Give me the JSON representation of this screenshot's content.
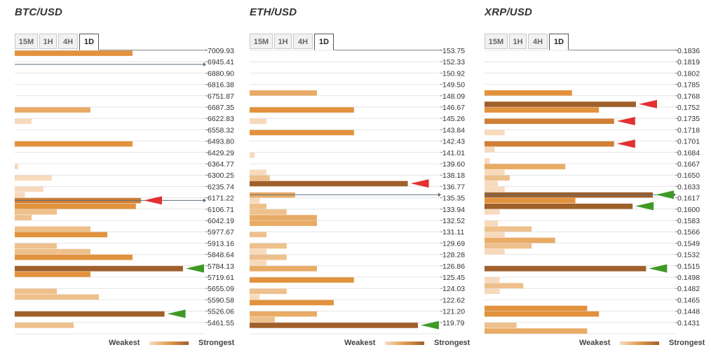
{
  "timeframes": [
    "15M",
    "1H",
    "4H",
    "1D"
  ],
  "active_timeframe": "1D",
  "legend": {
    "weakest": "Weakest",
    "strongest": "Strongest"
  },
  "colors": {
    "level1": "#f7d9bc",
    "level2": "#eec08c",
    "level3": "#e9ab65",
    "level4": "#e2923d",
    "level5": "#d07f35",
    "level6": "#a0602a",
    "red_marker": "#e33030",
    "green_marker": "#3f9a25",
    "grid": "#e4e4e4"
  },
  "chart_data": [
    {
      "type": "bar",
      "title": "BTC/USD",
      "orientation": "horizontal",
      "strength_scale_max": 10,
      "price_ticks": [
        "7009.93",
        "6945.41",
        "6880.90",
        "6816.38",
        "6751.87",
        "6687.35",
        "6622.83",
        "6558.32",
        "6493.80",
        "6429.29",
        "6364.77",
        "6300.25",
        "6235.74",
        "6171.22",
        "6106.71",
        "6042.19",
        "5977.67",
        "5913.16",
        "5848.64",
        "5784.13",
        "5719.61",
        "5655.09",
        "5590.58",
        "5526.06",
        "5461.55"
      ],
      "current_price_tick": "6171.22",
      "bars": [
        {
          "band": 0,
          "strength": 7,
          "level": 4
        },
        {
          "band": 5,
          "strength": 4.5,
          "level": 3
        },
        {
          "band": 6,
          "strength": 1,
          "level": 1
        },
        {
          "band": 8,
          "strength": 7,
          "level": 4
        },
        {
          "band": 10,
          "strength": 0.2,
          "level": 1
        },
        {
          "band": 11,
          "strength": 2.2,
          "level": 1
        },
        {
          "band": 12,
          "strength": 1.7,
          "level": 1
        },
        {
          "band": 12.5,
          "strength": 0.6,
          "level": 1
        },
        {
          "band": 13,
          "strength": 7.5,
          "level": 5
        },
        {
          "band": 13.5,
          "strength": 7.2,
          "level": 4
        },
        {
          "band": 14,
          "strength": 2.5,
          "level": 2
        },
        {
          "band": 14.5,
          "strength": 1,
          "level": 2
        },
        {
          "band": 15.5,
          "strength": 4.5,
          "level": 2
        },
        {
          "band": 16,
          "strength": 5.5,
          "level": 4
        },
        {
          "band": 17,
          "strength": 2.5,
          "level": 2
        },
        {
          "band": 17.5,
          "strength": 4.5,
          "level": 2
        },
        {
          "band": 18,
          "strength": 7,
          "level": 4
        },
        {
          "band": 19,
          "strength": 10,
          "level": 6
        },
        {
          "band": 19.5,
          "strength": 4.5,
          "level": 4
        },
        {
          "band": 21,
          "strength": 2.5,
          "level": 2
        },
        {
          "band": 21.5,
          "strength": 5,
          "level": 2
        },
        {
          "band": 23,
          "strength": 8.9,
          "level": 6
        },
        {
          "band": 24,
          "strength": 3.5,
          "level": 2
        }
      ],
      "markers": [
        {
          "band": 13,
          "color": "red",
          "at_strength": 7.5
        },
        {
          "band": 19,
          "color": "green",
          "at_strength": 10
        },
        {
          "band": 23,
          "color": "green",
          "at_strength": 8.9
        }
      ],
      "reference_lines": [
        {
          "band": 1,
          "strength": 11
        },
        {
          "band": 13,
          "strength": 11
        }
      ]
    },
    {
      "type": "bar",
      "title": "ETH/USD",
      "orientation": "horizontal",
      "strength_scale_max": 10,
      "price_ticks": [
        "153.75",
        "152.33",
        "150.92",
        "149.50",
        "148.09",
        "146.67",
        "145.26",
        "143.84",
        "142.43",
        "141.01",
        "139.60",
        "138.18",
        "136.77",
        "135.35",
        "133.94",
        "132.52",
        "131.11",
        "129.69",
        "128.28",
        "126.86",
        "125.45",
        "124.03",
        "122.62",
        "121.20",
        "119.79"
      ],
      "current_price_tick": "136.77",
      "bars": [
        {
          "band": 3.5,
          "strength": 4,
          "level": 3
        },
        {
          "band": 5,
          "strength": 6.2,
          "level": 4
        },
        {
          "band": 6,
          "strength": 1,
          "level": 1
        },
        {
          "band": 7,
          "strength": 6.2,
          "level": 4
        },
        {
          "band": 9,
          "strength": 0.3,
          "level": 1
        },
        {
          "band": 10.5,
          "strength": 1,
          "level": 1
        },
        {
          "band": 11,
          "strength": 1.2,
          "level": 2
        },
        {
          "band": 11.5,
          "strength": 9.4,
          "level": 6
        },
        {
          "band": 12.5,
          "strength": 2.7,
          "level": 3
        },
        {
          "band": 13,
          "strength": 0.6,
          "level": 1
        },
        {
          "band": 13.5,
          "strength": 1,
          "level": 2
        },
        {
          "band": 14,
          "strength": 2.2,
          "level": 2
        },
        {
          "band": 14.5,
          "strength": 4,
          "level": 3
        },
        {
          "band": 15,
          "strength": 4,
          "level": 3
        },
        {
          "band": 16,
          "strength": 1,
          "level": 2
        },
        {
          "band": 17,
          "strength": 2.2,
          "level": 2
        },
        {
          "band": 17.5,
          "strength": 1,
          "level": 1
        },
        {
          "band": 18,
          "strength": 2.2,
          "level": 2
        },
        {
          "band": 18.5,
          "strength": 1,
          "level": 1
        },
        {
          "band": 19,
          "strength": 4,
          "level": 3
        },
        {
          "band": 20,
          "strength": 6.2,
          "level": 4
        },
        {
          "band": 21,
          "strength": 2.2,
          "level": 2
        },
        {
          "band": 21.5,
          "strength": 0.6,
          "level": 1
        },
        {
          "band": 22,
          "strength": 5,
          "level": 4
        },
        {
          "band": 23,
          "strength": 4,
          "level": 3
        },
        {
          "band": 23.5,
          "strength": 1.5,
          "level": 2
        },
        {
          "band": 24,
          "strength": 10,
          "level": 6
        }
      ],
      "markers": [
        {
          "band": 11.5,
          "color": "red",
          "at_strength": 9.4
        },
        {
          "band": 24,
          "color": "green",
          "at_strength": 10
        }
      ],
      "reference_lines": [
        {
          "band": 12.5,
          "strength": 11
        }
      ]
    },
    {
      "type": "bar",
      "title": "XRP/USD",
      "orientation": "horizontal",
      "strength_scale_max": 10,
      "price_ticks": [
        "0.1836",
        "0.1819",
        "0.1802",
        "0.1785",
        "0.1768",
        "0.1752",
        "0.1735",
        "0.1718",
        "0.1701",
        "0.1684",
        "0.1667",
        "0.1650",
        "0.1633",
        "0.1617",
        "0.1600",
        "0.1583",
        "0.1566",
        "0.1549",
        "0.1532",
        "0.1515",
        "0.1498",
        "0.1482",
        "0.1465",
        "0.1448",
        "0.1431"
      ],
      "current_price_tick": "0.1633",
      "bars": [
        {
          "band": 3.5,
          "strength": 5.2,
          "level": 4
        },
        {
          "band": 4.5,
          "strength": 9,
          "level": 6
        },
        {
          "band": 5,
          "strength": 6.8,
          "level": 4
        },
        {
          "band": 6,
          "strength": 7.7,
          "level": 5
        },
        {
          "band": 7,
          "strength": 1.2,
          "level": 1
        },
        {
          "band": 8,
          "strength": 7.7,
          "level": 5
        },
        {
          "band": 8.5,
          "strength": 0.6,
          "level": 1
        },
        {
          "band": 9.5,
          "strength": 0.3,
          "level": 1
        },
        {
          "band": 10,
          "strength": 4.8,
          "level": 3
        },
        {
          "band": 10.5,
          "strength": 1.2,
          "level": 1
        },
        {
          "band": 11,
          "strength": 1.5,
          "level": 2
        },
        {
          "band": 11.5,
          "strength": 0.8,
          "level": 1
        },
        {
          "band": 12,
          "strength": 1.2,
          "level": 1
        },
        {
          "band": 12.5,
          "strength": 10,
          "level": 6
        },
        {
          "band": 13,
          "strength": 5.4,
          "level": 4
        },
        {
          "band": 13.5,
          "strength": 8.8,
          "level": 6
        },
        {
          "band": 14,
          "strength": 0.9,
          "level": 1
        },
        {
          "band": 15,
          "strength": 0.8,
          "level": 1
        },
        {
          "band": 15.5,
          "strength": 2.8,
          "level": 2
        },
        {
          "band": 16,
          "strength": 1.2,
          "level": 1
        },
        {
          "band": 16.5,
          "strength": 4.2,
          "level": 3
        },
        {
          "band": 17,
          "strength": 2.8,
          "level": 2
        },
        {
          "band": 17.5,
          "strength": 1.2,
          "level": 1
        },
        {
          "band": 19,
          "strength": 9.6,
          "level": 6
        },
        {
          "band": 20,
          "strength": 0.9,
          "level": 1
        },
        {
          "band": 20.5,
          "strength": 2.3,
          "level": 2
        },
        {
          "band": 21,
          "strength": 0.9,
          "level": 1
        },
        {
          "band": 22.5,
          "strength": 6.1,
          "level": 4
        },
        {
          "band": 23,
          "strength": 6.8,
          "level": 4
        },
        {
          "band": 24,
          "strength": 1.9,
          "level": 2
        },
        {
          "band": 24.5,
          "strength": 6.1,
          "level": 3
        }
      ],
      "markers": [
        {
          "band": 4.5,
          "color": "red",
          "at_strength": 9
        },
        {
          "band": 6,
          "color": "red",
          "at_strength": 7.7
        },
        {
          "band": 8,
          "color": "red",
          "at_strength": 7.7
        },
        {
          "band": 12.5,
          "color": "green",
          "at_strength": 10
        },
        {
          "band": 13.5,
          "color": "green",
          "at_strength": 8.8
        },
        {
          "band": 19,
          "color": "green",
          "at_strength": 9.6
        }
      ],
      "reference_lines": [
        {
          "band": 12.5,
          "strength": 11
        }
      ]
    }
  ]
}
